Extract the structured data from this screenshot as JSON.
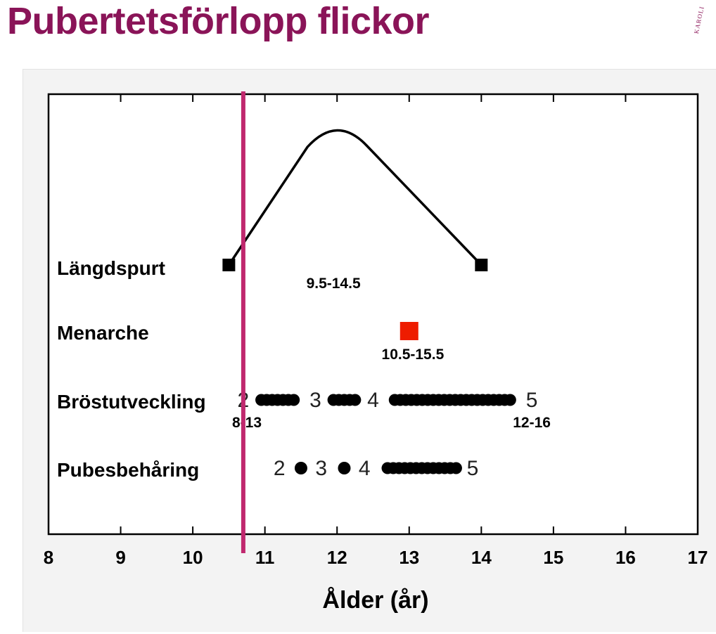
{
  "slide": {
    "title": "Pubertetsförlopp flickor",
    "title_color": "#8a1458",
    "logo_text": "KAROLI"
  },
  "chart_data": {
    "type": "scatter",
    "xlabel": "Ålder (år)",
    "xlim": [
      8,
      17
    ],
    "xticks": [
      8,
      9,
      10,
      11,
      12,
      13,
      14,
      15,
      16,
      17
    ],
    "categories": [
      "Längdspurt",
      "Menarche",
      "Bröstutveckling",
      "Pubesbehåring"
    ],
    "marker_line": {
      "x": 10.7,
      "color": "#c0286e"
    },
    "rows": [
      {
        "label": "Längdspurt",
        "curve": {
          "start": 10.5,
          "peak": 12.0,
          "end": 14.0,
          "color": "#000000"
        },
        "endpoints": [
          10.5,
          14.0
        ],
        "range_label": "9.5-14.5",
        "range_label_x": 11.95
      },
      {
        "label": "Menarche",
        "point": {
          "x": 13.0,
          "color": "#ee1c00"
        },
        "range_label": "10.5-15.5",
        "range_label_x": 13.05
      },
      {
        "label": "Bröstutveckling",
        "stages": [
          {
            "label": "2",
            "x": 10.7
          },
          {
            "label": "3",
            "x": 11.7
          },
          {
            "label": "4",
            "x": 12.5
          },
          {
            "label": "5",
            "x": 14.7
          }
        ],
        "dot_segments": [
          [
            10.95,
            11.4
          ],
          [
            11.95,
            12.25
          ],
          [
            12.8,
            14.4
          ]
        ],
        "range_labels": [
          {
            "text": "8-13",
            "x": 10.75
          },
          {
            "text": "12-16",
            "x": 14.7
          }
        ]
      },
      {
        "label": "Pubesbehåring",
        "stages": [
          {
            "label": "2",
            "x": 11.2
          },
          {
            "label": "3",
            "x": 11.78
          },
          {
            "label": "4",
            "x": 12.38
          },
          {
            "label": "5",
            "x": 13.88
          }
        ],
        "dots": [
          11.5,
          12.1
        ],
        "dot_segments": [
          [
            12.7,
            13.65
          ]
        ]
      }
    ]
  }
}
